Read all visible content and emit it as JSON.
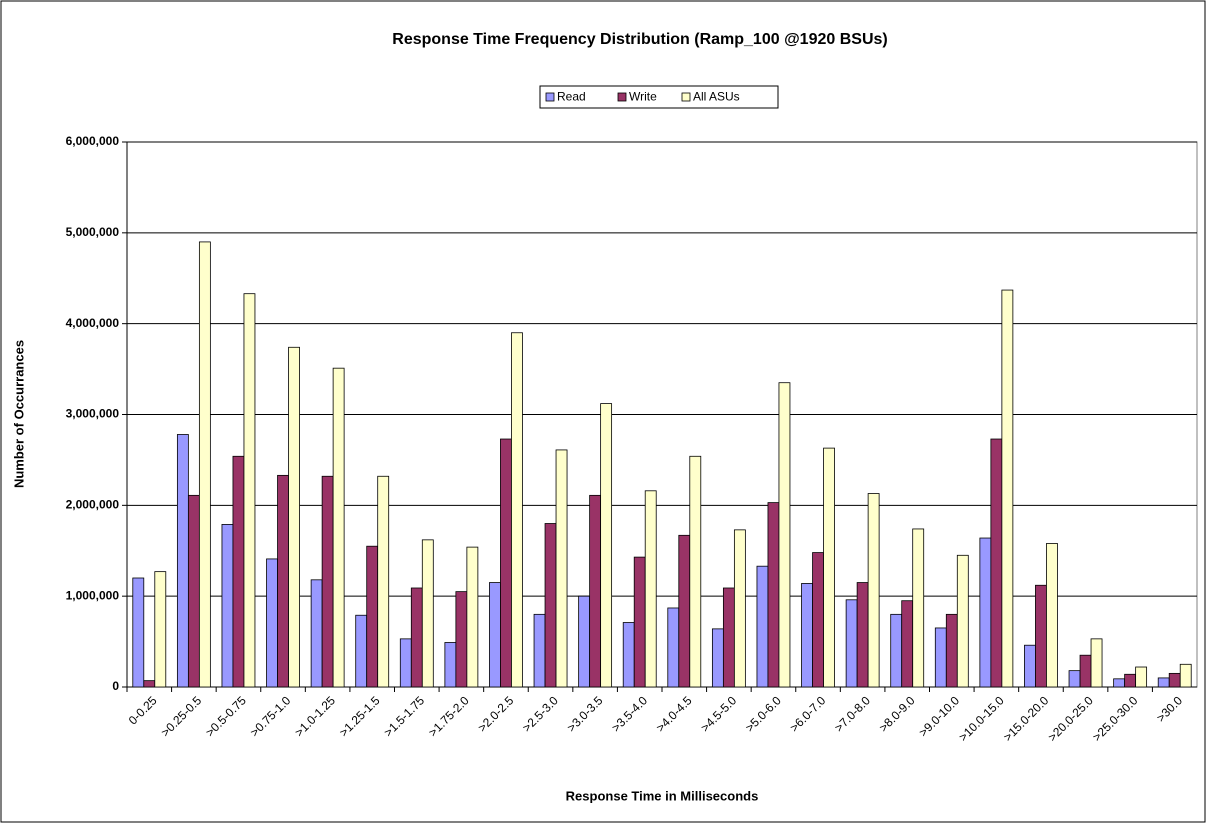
{
  "chart_data": {
    "type": "bar",
    "title": "Response Time Frequency Distribution (Ramp_100 @1920 BSUs)",
    "xlabel": "Response Time in Milliseconds",
    "ylabel": "Number of Occurrances",
    "categories": [
      "0-0.25",
      ">0.25-0.5",
      ">0.5-0.75",
      ">0.75-1.0",
      ">1.0-1.25",
      ">1.25-1.5",
      ">1.5-1.75",
      ">1.75-2.0",
      ">2.0-2.5",
      ">2.5-3.0",
      ">3.0-3.5",
      ">3.5-4.0",
      ">4.0-4.5",
      ">4.5-5.0",
      ">5.0-6.0",
      ">6.0-7.0",
      ">7.0-8.0",
      ">8.0-9.0",
      ">9.0-10.0",
      ">10.0-15.0",
      ">15.0-20.0",
      ">20.0-25.0",
      ">25.0-30.0",
      ">30.0"
    ],
    "series": [
      {
        "name": "Read",
        "color": "#9999ff",
        "values": [
          1200000,
          2780000,
          1790000,
          1410000,
          1180000,
          790000,
          530000,
          490000,
          1150000,
          800000,
          1000000,
          710000,
          870000,
          640000,
          1330000,
          1140000,
          960000,
          800000,
          650000,
          1640000,
          460000,
          180000,
          90000,
          100000
        ]
      },
      {
        "name": "Write",
        "color": "#993366",
        "values": [
          70000,
          2110000,
          2540000,
          2330000,
          2320000,
          1550000,
          1090000,
          1050000,
          2730000,
          1800000,
          2110000,
          1430000,
          1670000,
          1090000,
          2030000,
          1480000,
          1150000,
          950000,
          800000,
          2730000,
          1120000,
          350000,
          140000,
          150000
        ]
      },
      {
        "name": "All ASUs",
        "color": "#ffffcc",
        "values": [
          1270000,
          4900000,
          4330000,
          3740000,
          3510000,
          2320000,
          1620000,
          1540000,
          3900000,
          2610000,
          3120000,
          2160000,
          2540000,
          1730000,
          3350000,
          2630000,
          2130000,
          1740000,
          1450000,
          4370000,
          1580000,
          530000,
          220000,
          250000
        ]
      }
    ],
    "ylim": [
      0,
      6000000
    ],
    "yticks": [
      0,
      {
        "value": 1000000,
        "label": "1,000,000"
      },
      {
        "value": 2000000,
        "label": "2,000,000"
      },
      {
        "value": 3000000,
        "label": "3,000,000"
      },
      {
        "value": 4000000,
        "label": "4,000,000"
      },
      {
        "value": 5000000,
        "label": "5,000,000"
      },
      {
        "value": 6000000,
        "label": "6,000,000"
      }
    ],
    "grid": true,
    "legend": "top"
  }
}
